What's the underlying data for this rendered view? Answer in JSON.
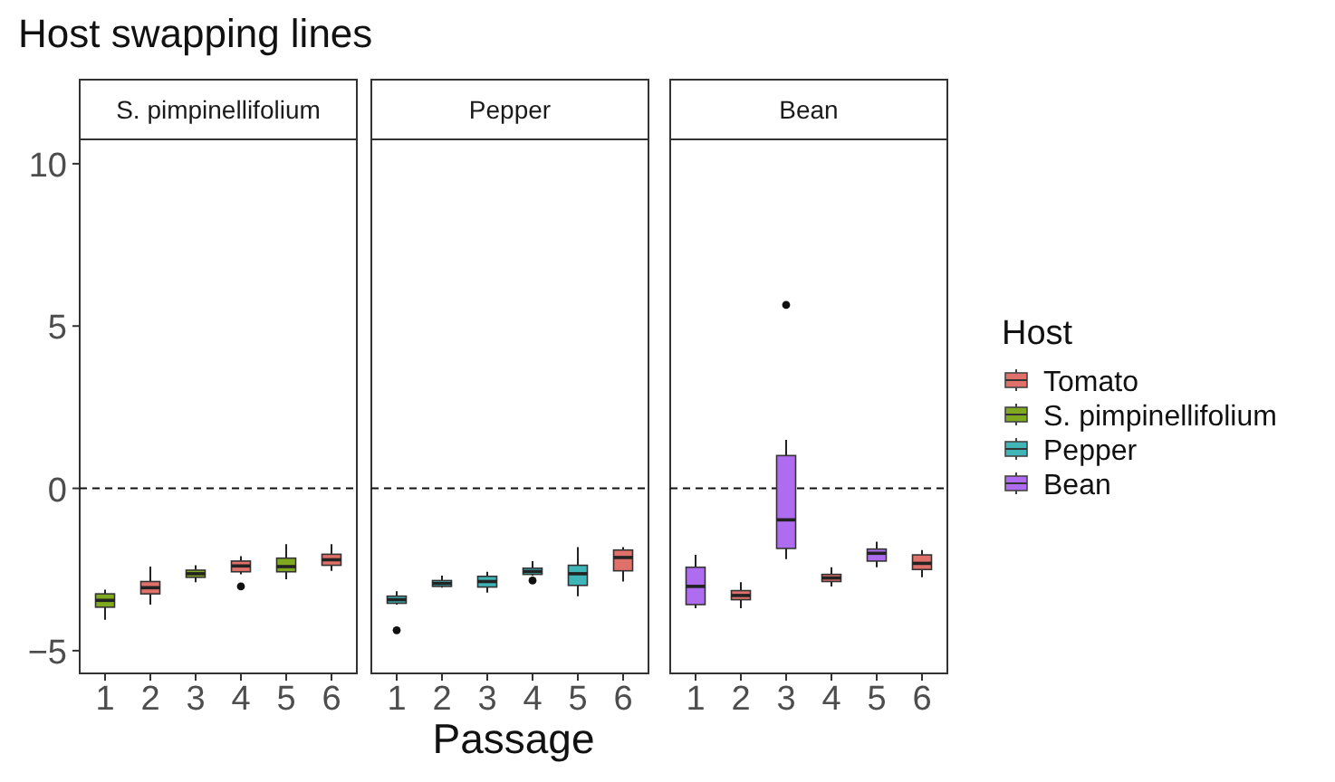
{
  "chart_data": [
    {
      "type": "box",
      "title": "Host swapping lines",
      "subtitle": "S. pimpinellifolium",
      "categories": [
        "1",
        "2",
        "3",
        "4",
        "5",
        "6"
      ],
      "ylim": [
        -5.7,
        10.75
      ],
      "yticks": [
        -5,
        0,
        5,
        10
      ],
      "grid": false,
      "legend": false,
      "ref_lines": [
        {
          "axis": "y",
          "value": 0,
          "line_style": "dashed"
        }
      ],
      "series": [
        {
          "color": "#e0706a",
          "boxes": [
            null,
            {
              "low": -3.58,
              "q1": -3.25,
              "median": -3.06,
              "q3": -2.87,
              "high": -2.41
            },
            null,
            {
              "low": -2.65,
              "q1": -2.57,
              "median": -2.39,
              "q3": -2.24,
              "high": -2.09,
              "outliers": [
                -3.02
              ]
            },
            null,
            {
              "low": -2.54,
              "q1": -2.37,
              "median": -2.2,
              "q3": -2.03,
              "high": -1.72
            }
          ]
        },
        {
          "color": "#7faa20",
          "boxes": [
            {
              "low": -4.05,
              "q1": -3.66,
              "median": -3.45,
              "q3": -3.25,
              "high": -3.12
            },
            null,
            {
              "low": -2.89,
              "q1": -2.74,
              "median": -2.63,
              "q3": -2.52,
              "high": -2.37
            },
            null,
            {
              "low": -2.8,
              "q1": -2.57,
              "median": -2.41,
              "q3": -2.15,
              "high": -1.72
            },
            null
          ]
        }
      ]
    },
    {
      "type": "box",
      "subtitle": "Pepper",
      "xlabel": "Passage",
      "categories": [
        "1",
        "2",
        "3",
        "4",
        "5",
        "6"
      ],
      "ylim": [
        -5.7,
        10.75
      ],
      "grid": false,
      "legend": false,
      "tick_labels": "x",
      "ref_lines": [
        {
          "axis": "y",
          "value": 0,
          "line_style": "dashed"
        }
      ],
      "series": [
        {
          "color": "#e0706a",
          "boxes": [
            null,
            null,
            null,
            null,
            null,
            {
              "low": -2.87,
              "q1": -2.54,
              "median": -2.13,
              "q3": -1.9,
              "high": -1.81
            }
          ]
        },
        {
          "color": "#3fb5b8",
          "boxes": [
            {
              "low": -3.58,
              "q1": -3.54,
              "median": -3.43,
              "q3": -3.32,
              "high": -3.17,
              "outliers": [
                -4.37
              ]
            },
            {
              "low": -3.06,
              "q1": -3.02,
              "median": -2.93,
              "q3": -2.84,
              "high": -2.69
            },
            {
              "low": -3.21,
              "q1": -3.04,
              "median": -2.87,
              "q3": -2.71,
              "high": -2.57
            },
            {
              "low": -2.69,
              "q1": -2.65,
              "median": -2.56,
              "q3": -2.46,
              "high": -2.24,
              "outliers": [
                -2.84
              ]
            },
            {
              "low": -3.32,
              "q1": -2.99,
              "median": -2.63,
              "q3": -2.37,
              "high": -1.81
            },
            null
          ]
        }
      ]
    },
    {
      "type": "box",
      "subtitle": "Bean",
      "legend_title": "Host",
      "categories": [
        "1",
        "2",
        "3",
        "4",
        "5",
        "6"
      ],
      "ylim": [
        -5.7,
        10.75
      ],
      "grid": false,
      "legend": "right",
      "tick_labels": "x",
      "ref_lines": [
        {
          "axis": "y",
          "value": 0,
          "line_style": "dashed"
        }
      ],
      "series": [
        {
          "name": "Tomato",
          "color": "#e0706a",
          "boxes": [
            null,
            {
              "low": -3.69,
              "q1": -3.43,
              "median": -3.3,
              "q3": -3.15,
              "high": -2.89
            },
            null,
            {
              "low": -3.02,
              "q1": -2.87,
              "median": -2.76,
              "q3": -2.65,
              "high": -2.43
            },
            null,
            {
              "low": -2.74,
              "q1": -2.5,
              "median": -2.31,
              "q3": -2.05,
              "high": -1.9
            }
          ]
        },
        {
          "name": "S. pimpinellifolium",
          "color": "#7faa20",
          "boxes": [
            null,
            null,
            null,
            null,
            null,
            null
          ]
        },
        {
          "name": "Pepper",
          "color": "#3fb5b8",
          "boxes": [
            null,
            null,
            null,
            null,
            null,
            null
          ]
        },
        {
          "name": "Bean",
          "color": "#b06cf0",
          "boxes": [
            {
              "low": -3.69,
              "q1": -3.58,
              "median": -3.02,
              "q3": -2.43,
              "high": -2.05
            },
            null,
            {
              "low": -2.18,
              "q1": -1.85,
              "median": -0.97,
              "q3": 1.01,
              "high": 1.49,
              "outliers": [
                5.65
              ]
            },
            null,
            {
              "low": -2.43,
              "q1": -2.24,
              "median": -2.0,
              "q3": -1.87,
              "high": -1.64
            },
            null
          ]
        }
      ]
    }
  ]
}
